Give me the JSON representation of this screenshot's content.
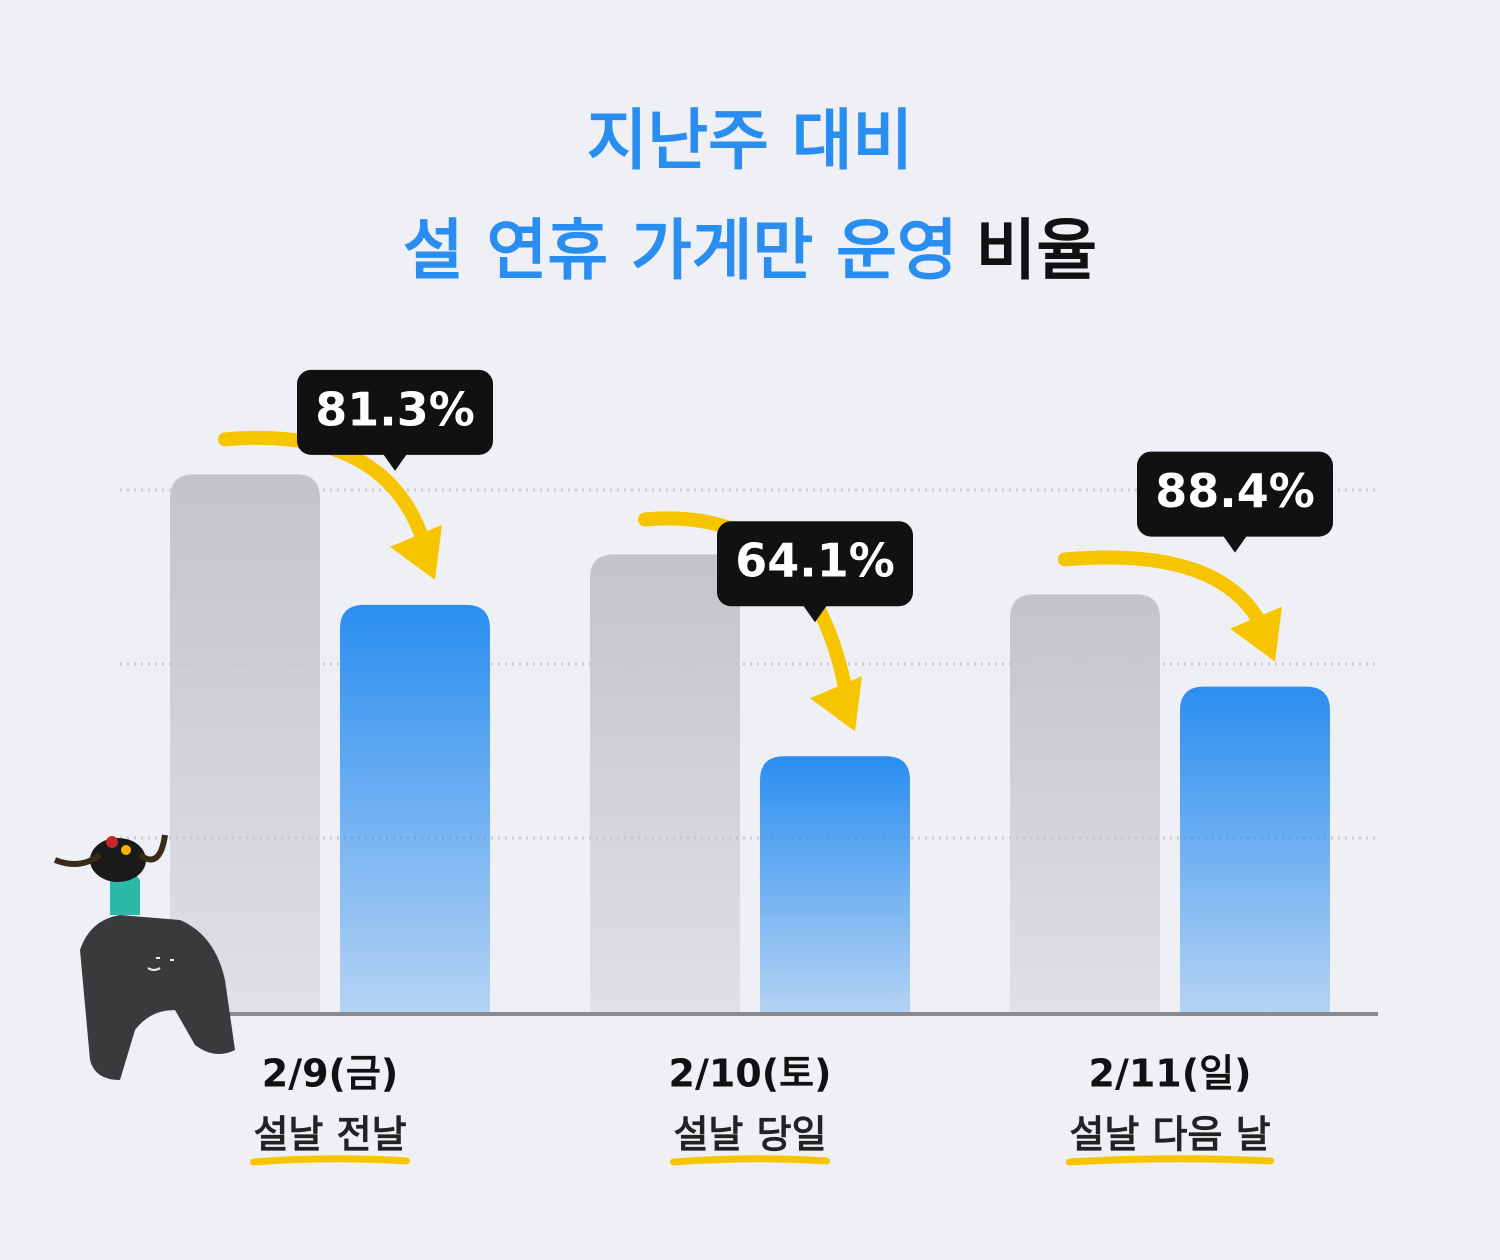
{
  "chart_data": {
    "type": "bar",
    "title": [
      "지난주 대비",
      "설 연휴 가게만 운영"
    ],
    "title_suffix": "비율",
    "categories": [
      "2/9(금)",
      "2/10(토)",
      "2/11(일)"
    ],
    "subcategories": [
      "설날 전날",
      "설날 당일",
      "설날 다음 날"
    ],
    "callouts": [
      "81.3%",
      "64.1%",
      "88.4%"
    ],
    "series": [
      {
        "color": "#c3c4c8",
        "values": [
          3.09,
          2.63,
          2.4
        ]
      },
      {
        "color": "#2a8ef0",
        "values": [
          2.34,
          1.47,
          1.87
        ]
      }
    ],
    "ylim": [
      0,
      3.5
    ],
    "yticks": [
      1,
      2,
      3
    ],
    "grid": true
  }
}
